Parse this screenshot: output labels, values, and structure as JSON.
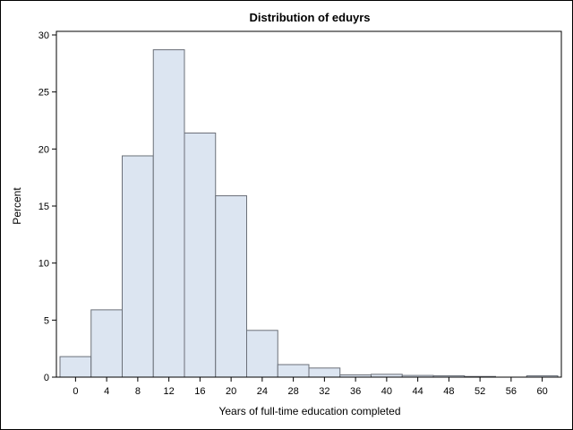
{
  "chart_data": {
    "type": "bar",
    "title": "Distribution of eduyrs",
    "xlabel": "Years of full-time education completed",
    "ylabel": "Percent",
    "bin_width": 4,
    "x_ticks": [
      0,
      4,
      8,
      12,
      16,
      20,
      24,
      28,
      32,
      36,
      40,
      44,
      48,
      52,
      56,
      60
    ],
    "y_ticks": [
      0,
      5,
      10,
      15,
      20,
      25,
      30
    ],
    "ylim": [
      0,
      30
    ],
    "xlim": [
      -2,
      62
    ],
    "bins": [
      {
        "start": -2,
        "value": 1.8
      },
      {
        "start": 2,
        "value": 5.9
      },
      {
        "start": 6,
        "value": 19.4
      },
      {
        "start": 10,
        "value": 28.7
      },
      {
        "start": 14,
        "value": 21.4
      },
      {
        "start": 18,
        "value": 15.9
      },
      {
        "start": 22,
        "value": 4.1
      },
      {
        "start": 26,
        "value": 1.1
      },
      {
        "start": 30,
        "value": 0.8
      },
      {
        "start": 34,
        "value": 0.2
      },
      {
        "start": 38,
        "value": 0.25
      },
      {
        "start": 42,
        "value": 0.15
      },
      {
        "start": 46,
        "value": 0.12
      },
      {
        "start": 50,
        "value": 0.06
      },
      {
        "start": 54,
        "value": 0.0
      },
      {
        "start": 58,
        "value": 0.12
      }
    ],
    "grid": false,
    "legend": "none",
    "colors": {
      "bar_fill": "#dce5f1",
      "bar_stroke": "#6b7079",
      "axis": "#000000"
    }
  }
}
